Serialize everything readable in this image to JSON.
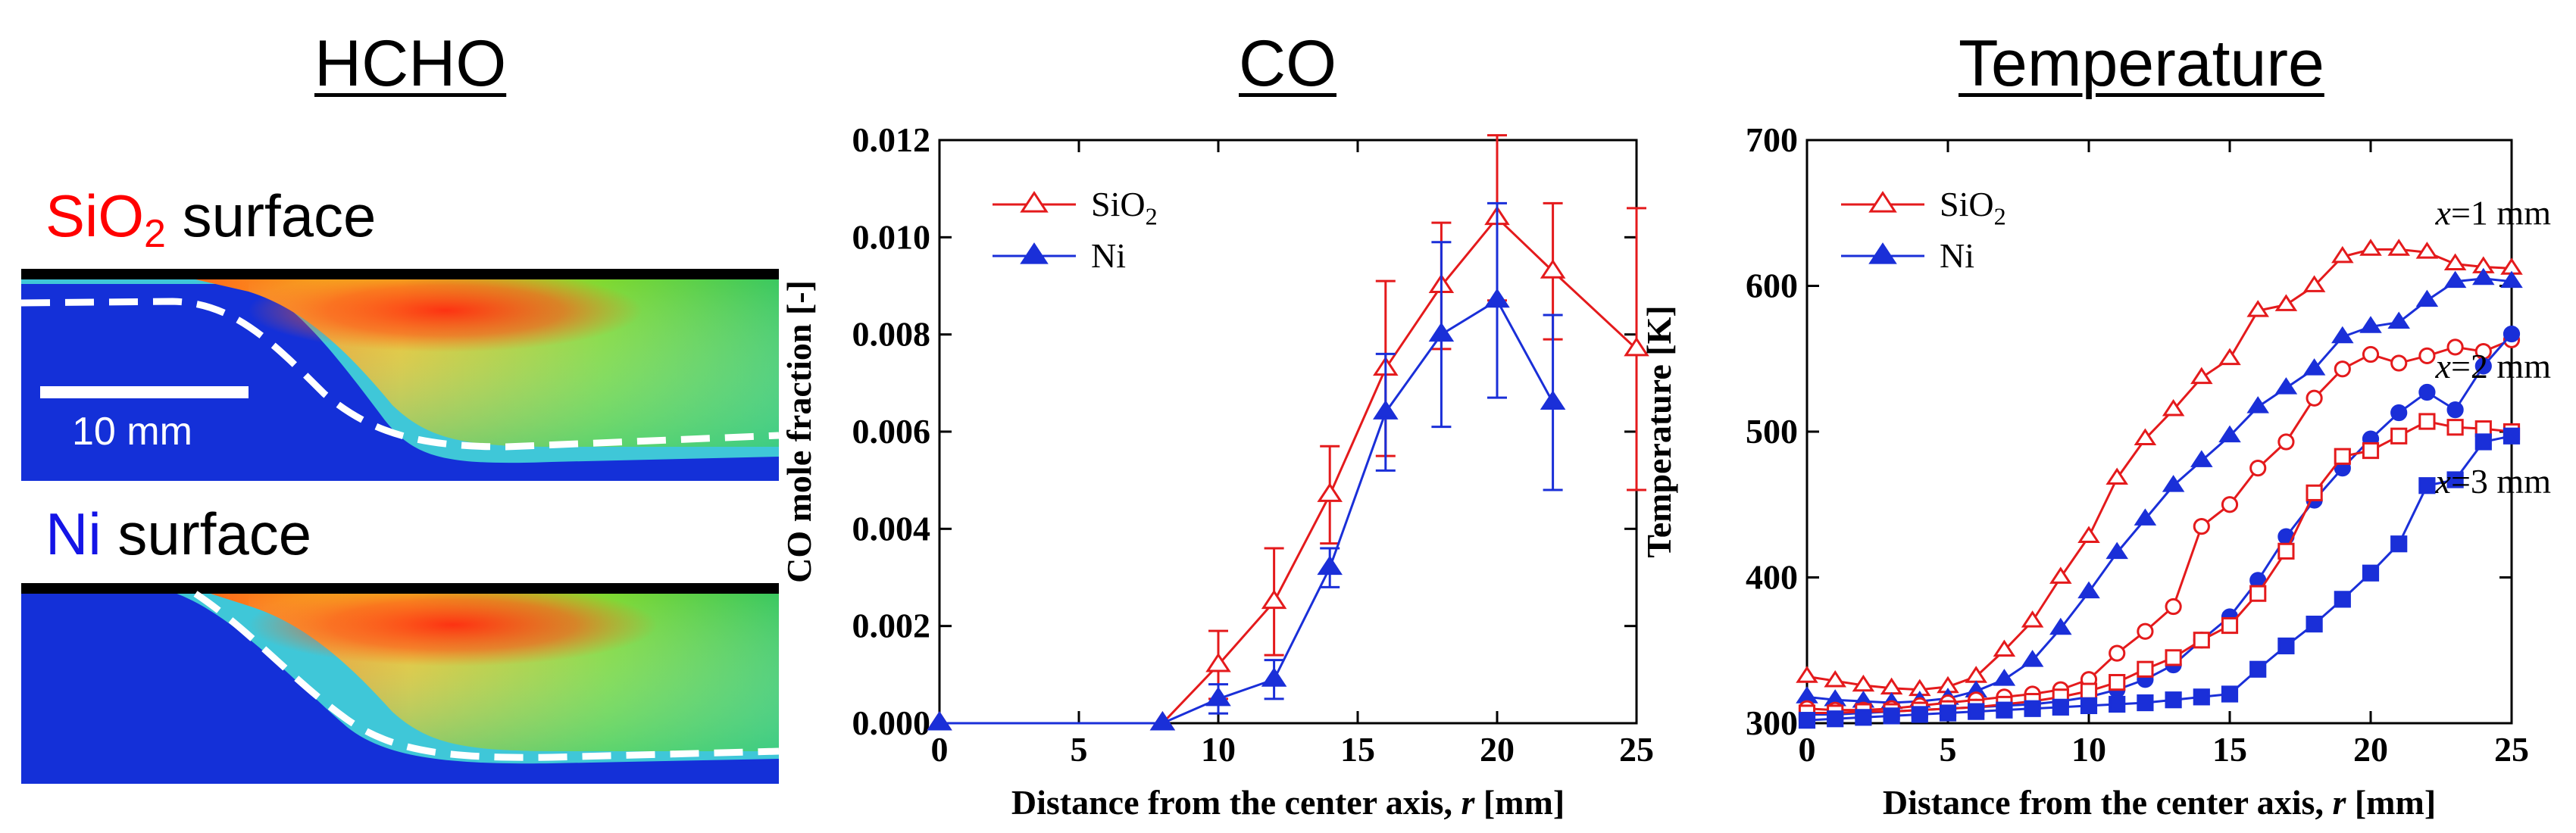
{
  "titles": {
    "hcho": "HCHO",
    "co": "CO",
    "temp": "Temperature"
  },
  "hcho_panel": {
    "sio2_label": {
      "red": "SiO",
      "sub": "2",
      "black": " surface",
      "red_color": "#ff0000"
    },
    "ni_label": {
      "blue": "Ni",
      "black": " surface",
      "blue_color": "#1414e6"
    },
    "scale_bar_label": "10 mm"
  },
  "chart_data": [
    {
      "type": "line",
      "title": "CO",
      "xlabel": "Distance from the center axis, r [mm]",
      "ylabel": "CO mole fraction [-]",
      "xlim": [
        0,
        25
      ],
      "ylim": [
        0,
        0.012
      ],
      "xticks": [
        "0",
        "5",
        "10",
        "15",
        "20",
        "25"
      ],
      "yticks": [
        "0.000",
        "0.002",
        "0.004",
        "0.006",
        "0.008",
        "0.010",
        "0.012"
      ],
      "legend_position": "top-left",
      "series": [
        {
          "name": "SiO2",
          "marker": "open-triangle",
          "color": "#e41a1c",
          "x": [
            0,
            8,
            10,
            12,
            14,
            16,
            18,
            20,
            22,
            25
          ],
          "y": [
            0,
            0,
            0.0012,
            0.0025,
            0.0047,
            0.0073,
            0.009,
            0.0104,
            0.0093,
            0.0077
          ],
          "err": [
            0,
            0,
            0.0007,
            0.0011,
            0.001,
            0.0018,
            0.0013,
            0.0017,
            0.0014,
            0.0029
          ]
        },
        {
          "name": "Ni",
          "marker": "filled-triangle",
          "color": "#1a2fd8",
          "x": [
            0,
            8,
            10,
            12,
            14,
            16,
            18,
            20,
            22
          ],
          "y": [
            0,
            0,
            0.0005,
            0.0009,
            0.0032,
            0.0064,
            0.008,
            0.0087,
            0.0066
          ],
          "err": [
            0,
            0,
            0.0003,
            0.0004,
            0.0004,
            0.0012,
            0.0019,
            0.002,
            0.0018
          ]
        }
      ]
    },
    {
      "type": "line",
      "title": "Temperature",
      "xlabel": "Distance from the center axis, r [mm]",
      "ylabel": "Temperature [K]",
      "xlim": [
        0,
        25
      ],
      "ylim": [
        300,
        700
      ],
      "xticks": [
        "0",
        "5",
        "10",
        "15",
        "20",
        "25"
      ],
      "yticks": [
        "300",
        "400",
        "500",
        "600",
        "700"
      ],
      "legend_position": "top-left",
      "legend": [
        {
          "name": "SiO2",
          "marker": "open-triangle",
          "color": "#e41a1c"
        },
        {
          "name": "Ni",
          "marker": "filled-triangle",
          "color": "#1a2fd8"
        }
      ],
      "annotations": [
        {
          "text": "x=1 mm",
          "near": [
            22.3,
            642
          ]
        },
        {
          "text": "x=2 mm",
          "near": [
            22.3,
            537
          ]
        },
        {
          "text": "x=3 mm",
          "near": [
            22.3,
            458
          ]
        }
      ],
      "series": [
        {
          "surface": "SiO2",
          "height": "x=1 mm",
          "marker": "open-triangle",
          "color": "#e41a1c",
          "x": [
            0,
            1,
            2,
            3,
            4,
            5,
            6,
            7,
            8,
            9,
            10,
            11,
            12,
            13,
            14,
            15,
            16,
            17,
            18,
            19,
            20,
            21,
            22,
            23,
            24,
            25
          ],
          "y": [
            332,
            329,
            326,
            324,
            323,
            325,
            332,
            350,
            370,
            400,
            428,
            468,
            495,
            515,
            537,
            550,
            583,
            587,
            600,
            620,
            625,
            625,
            623,
            615,
            613,
            612
          ]
        },
        {
          "surface": "Ni",
          "height": "x=1 mm",
          "marker": "filled-triangle",
          "color": "#1a2fd8",
          "x": [
            0,
            1,
            2,
            3,
            4,
            5,
            6,
            7,
            8,
            9,
            10,
            11,
            12,
            13,
            14,
            15,
            16,
            17,
            18,
            19,
            20,
            21,
            22,
            23,
            24,
            25
          ],
          "y": [
            318,
            316,
            315,
            314,
            315,
            317,
            322,
            330,
            343,
            365,
            390,
            417,
            440,
            463,
            480,
            497,
            517,
            530,
            543,
            565,
            572,
            575,
            590,
            603,
            605,
            603
          ]
        },
        {
          "surface": "SiO2",
          "height": "x=2 mm",
          "marker": "open-circle",
          "color": "#e41a1c",
          "x": [
            0,
            1,
            2,
            3,
            4,
            5,
            6,
            7,
            8,
            9,
            10,
            11,
            12,
            13,
            14,
            15,
            16,
            17,
            18,
            19,
            20,
            21,
            22,
            23,
            24,
            25
          ],
          "y": [
            310,
            309,
            309,
            310,
            312,
            314,
            316,
            318,
            320,
            323,
            330,
            348,
            363,
            380,
            435,
            450,
            475,
            493,
            523,
            543,
            553,
            547,
            552,
            558,
            555,
            563
          ]
        },
        {
          "surface": "Ni",
          "height": "x=2 mm",
          "marker": "filled-circle",
          "color": "#1a2fd8",
          "x": [
            0,
            1,
            2,
            3,
            4,
            5,
            6,
            7,
            8,
            9,
            10,
            11,
            12,
            13,
            14,
            15,
            16,
            17,
            18,
            19,
            20,
            21,
            22,
            23,
            24,
            25
          ],
          "y": [
            306,
            306,
            307,
            308,
            309,
            310,
            311,
            312,
            313,
            315,
            318,
            323,
            330,
            340,
            357,
            373,
            398,
            428,
            453,
            475,
            495,
            513,
            527,
            515,
            545,
            567
          ]
        },
        {
          "surface": "SiO2",
          "height": "x=3 mm",
          "marker": "open-square",
          "color": "#e41a1c",
          "x": [
            0,
            1,
            2,
            3,
            4,
            5,
            6,
            7,
            8,
            9,
            10,
            11,
            12,
            13,
            14,
            15,
            16,
            17,
            18,
            19,
            20,
            21,
            22,
            23,
            24,
            25
          ],
          "y": [
            307,
            307,
            308,
            308,
            309,
            310,
            311,
            313,
            315,
            318,
            322,
            328,
            337,
            345,
            357,
            367,
            389,
            418,
            458,
            483,
            487,
            497,
            507,
            503,
            502,
            500
          ]
        },
        {
          "surface": "Ni",
          "height": "x=3 mm",
          "marker": "filled-square",
          "color": "#1a2fd8",
          "x": [
            0,
            1,
            2,
            3,
            4,
            5,
            6,
            7,
            8,
            9,
            10,
            11,
            12,
            13,
            14,
            15,
            16,
            17,
            18,
            19,
            20,
            21,
            22,
            23,
            24,
            25
          ],
          "y": [
            302,
            303,
            304,
            305,
            306,
            307,
            308,
            309,
            310,
            311,
            312,
            313,
            314,
            316,
            318,
            320,
            337,
            353,
            368,
            385,
            403,
            423,
            463,
            467,
            493,
            497
          ]
        }
      ]
    }
  ]
}
